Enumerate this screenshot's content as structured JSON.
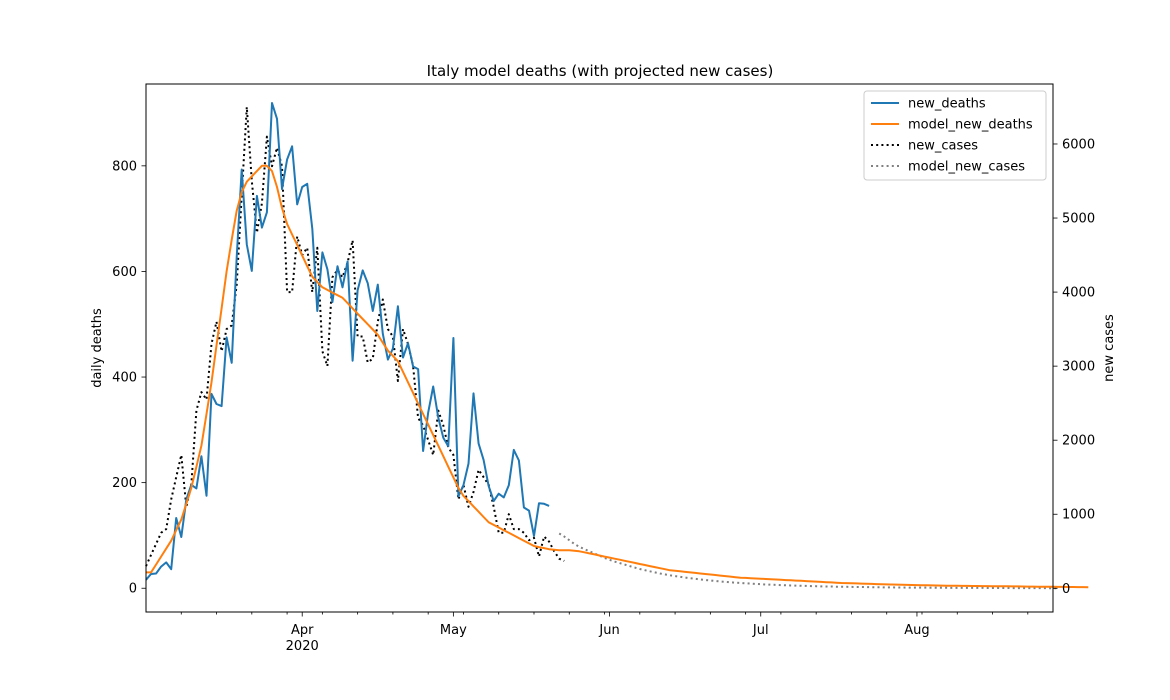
{
  "chart_data": {
    "type": "line",
    "title": "Italy model deaths (with projected new cases)",
    "ylabel_left": "daily deaths",
    "ylabel_right": "new cases",
    "x_range": [
      "2020-03-01",
      "2020-08-28"
    ],
    "ylim_left": [
      -45,
      955
    ],
    "ylim_right": [
      -320,
      6810
    ],
    "left_ticks": [
      0,
      200,
      400,
      600,
      800
    ],
    "right_ticks": [
      0,
      1000,
      2000,
      3000,
      4000,
      5000,
      6000
    ],
    "x_ticks": [
      {
        "date": "2020-04-01",
        "label": "Apr",
        "sublabel": "2020"
      },
      {
        "date": "2020-05-01",
        "label": "May",
        "sublabel": ""
      },
      {
        "date": "2020-06-01",
        "label": "Jun",
        "sublabel": ""
      },
      {
        "date": "2020-07-01",
        "label": "Jul",
        "sublabel": ""
      },
      {
        "date": "2020-08-01",
        "label": "Aug",
        "sublabel": ""
      }
    ],
    "minor_tick_interval_days": 7,
    "legend_position": "upper-right",
    "series": [
      {
        "name": "new_deaths",
        "axis": "left",
        "color": "#1f77b4",
        "style": "solid",
        "start": "2020-03-01",
        "values": [
          16,
          27,
          28,
          41,
          49,
          36,
          133,
          97,
          168,
          196,
          189,
          250,
          175,
          368,
          349,
          345,
          475,
          427,
          627,
          793,
          651,
          601,
          743,
          683,
          712,
          919,
          889,
          756,
          812,
          837,
          727,
          760,
          766,
          681,
          525,
          636,
          604,
          542,
          610,
          570,
          619,
          431,
          564,
          602,
          578,
          525,
          575,
          482,
          433,
          454,
          534,
          437,
          464,
          420,
          415,
          260,
          333,
          382,
          323,
          285,
          269,
          474,
          174,
          195,
          236,
          369,
          274,
          243,
          194,
          165,
          179,
          172,
          195,
          262,
          242,
          153,
          147,
          99,
          161,
          160,
          156
        ]
      },
      {
        "name": "model_new_deaths",
        "axis": "left",
        "color": "#ff7f0e",
        "style": "solid",
        "start": "2020-03-01",
        "values": [
          30,
          30,
          45,
          60,
          75,
          90,
          110,
          130,
          160,
          190,
          230,
          270,
          330,
          390,
          460,
          530,
          600,
          660,
          715,
          750,
          770,
          780,
          790,
          800,
          800,
          790,
          760,
          720,
          690,
          670,
          650,
          630,
          610,
          590,
          580,
          570,
          565,
          560,
          555,
          550,
          540,
          530,
          520,
          510,
          500,
          490,
          480,
          465,
          450,
          440,
          430,
          410,
          390,
          370,
          350,
          330,
          310,
          290,
          270,
          250,
          230,
          210,
          190,
          175,
          165,
          155,
          145,
          135,
          125,
          120,
          115,
          110,
          105,
          100,
          95,
          90,
          85,
          80,
          78,
          76,
          74,
          73,
          72,
          72,
          72,
          71,
          70,
          68,
          66,
          64,
          62,
          60,
          58,
          56,
          54,
          52,
          50,
          48,
          46,
          44,
          42,
          40,
          38,
          36,
          34,
          33,
          32,
          31,
          30,
          29,
          28,
          27,
          26,
          25,
          24,
          23,
          22,
          21,
          20,
          19.5,
          19,
          18.5,
          18,
          17.5,
          17,
          16.5,
          16,
          15.5,
          15,
          14.5,
          14,
          13.5,
          13,
          12.5,
          12,
          11.5,
          11,
          10.5,
          10,
          9.7,
          9.4,
          9.1,
          8.8,
          8.5,
          8.2,
          7.9,
          7.6,
          7.3,
          7,
          6.8,
          6.6,
          6.4,
          6.2,
          6,
          5.8,
          5.6,
          5.4,
          5.2,
          5,
          4.8,
          4.7,
          4.6,
          4.5,
          4.4,
          4.3,
          4.2,
          4.1,
          4,
          3.9,
          3.8,
          3.7,
          3.6,
          3.5,
          3.4,
          3.3,
          3.2,
          3.1,
          3.0,
          2.9,
          2.8,
          2.7,
          2.6,
          2.5,
          2.4,
          2.3,
          2.2,
          2.1,
          2.0
        ]
      },
      {
        "name": "new_cases",
        "axis": "right",
        "color": "#000000",
        "style": "dotted",
        "start": "2020-03-01",
        "values": [
          300,
          450,
          600,
          750,
          800,
          1200,
          1500,
          1800,
          1100,
          1400,
          2400,
          2650,
          2550,
          3300,
          3600,
          3200,
          3500,
          3550,
          4100,
          5300,
          6500,
          5500,
          4800,
          5200,
          6100,
          5700,
          5950,
          5700,
          4000,
          4000,
          4750,
          4500,
          4600,
          4000,
          4600,
          3200,
          3000,
          4200,
          4300,
          4200,
          4400,
          4700,
          3400,
          3400,
          3050,
          3100,
          3600,
          3900,
          3500,
          3400,
          2800,
          3500,
          3300,
          3000,
          2300,
          2200,
          2000,
          1800,
          2400,
          2200,
          1900,
          1800,
          1200,
          1400,
          1100,
          1300,
          1600,
          1500,
          1400,
          1100,
          750,
          750,
          1000,
          800,
          800,
          750,
          650,
          680,
          430,
          700,
          630,
          500,
          400,
          370
        ]
      },
      {
        "name": "model_new_cases",
        "axis": "right",
        "color": "#808080",
        "style": "dotted",
        "start": "2020-05-22",
        "values": [
          740,
          700,
          650,
          600,
          560,
          530,
          500,
          470,
          440,
          410,
          385,
          360,
          340,
          320,
          300,
          280,
          260,
          245,
          230,
          215,
          200,
          188,
          176,
          165,
          155,
          145,
          136,
          128,
          120,
          112,
          105,
          98,
          92,
          86,
          81,
          76,
          71,
          67,
          63,
          59,
          55,
          52,
          49,
          46,
          43,
          40,
          38,
          36,
          34,
          32,
          30,
          28,
          26,
          25,
          24,
          22,
          21,
          20,
          19,
          18,
          17,
          16,
          15,
          14,
          13,
          12,
          12,
          11,
          11,
          10,
          10,
          9,
          9,
          8,
          8,
          7,
          7,
          7,
          6,
          6,
          6,
          5,
          5,
          5,
          5,
          4,
          4,
          4,
          4,
          4,
          3,
          3,
          3,
          3,
          3,
          3,
          3,
          2,
          2,
          2
        ]
      }
    ]
  }
}
